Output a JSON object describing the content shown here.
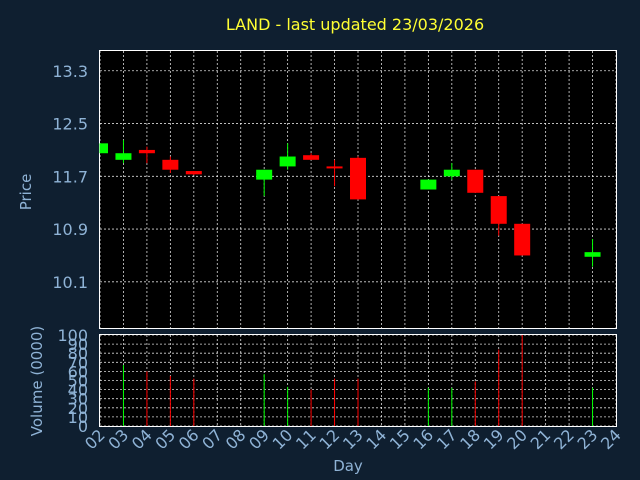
{
  "chart_data": {
    "type": "candlestick",
    "title": "LAND - last updated 23/03/2026",
    "xlabel": "Day",
    "ylabel_price": "Price",
    "ylabel_volume": "Volume (0000)",
    "x_ticks": [
      "02",
      "03",
      "04",
      "05",
      "06",
      "07",
      "08",
      "09",
      "10",
      "11",
      "12",
      "13",
      "14",
      "15",
      "16",
      "17",
      "18",
      "19",
      "20",
      "21",
      "22",
      "23",
      "24"
    ],
    "price_ticks": [
      "10.1",
      "10.9",
      "11.7",
      "12.5",
      "13.3"
    ],
    "price_tick_values": [
      10.1,
      10.9,
      11.7,
      12.5,
      13.3
    ],
    "price_range": [
      9.4,
      13.6
    ],
    "volume_ticks": [
      "0",
      "10",
      "20",
      "30",
      "40",
      "50",
      "60",
      "70",
      "80",
      "90",
      "100"
    ],
    "volume_range": [
      0,
      100
    ],
    "grid": true,
    "colors": {
      "up": "#00ff00",
      "down": "#ff0000",
      "title": "#ffff33",
      "axis_text": "#8fb3d6",
      "background": "#0f1f30",
      "plot": "#000000"
    },
    "candles": [
      {
        "day": "02",
        "open": 12.05,
        "high": 12.2,
        "low": 12.05,
        "close": 12.2,
        "volume": 0
      },
      {
        "day": "03",
        "open": 11.95,
        "high": 12.25,
        "low": 11.9,
        "close": 12.05,
        "volume": 67
      },
      {
        "day": "04",
        "open": 12.1,
        "high": 12.15,
        "low": 11.9,
        "close": 12.05,
        "volume": 60
      },
      {
        "day": "05",
        "open": 11.95,
        "high": 12.0,
        "low": 11.75,
        "close": 11.8,
        "volume": 55
      },
      {
        "day": "06",
        "open": 11.78,
        "high": 11.78,
        "low": 11.72,
        "close": 11.73,
        "volume": 52
      },
      {
        "day": "09",
        "open": 11.65,
        "high": 11.8,
        "low": 11.4,
        "close": 11.8,
        "volume": 57
      },
      {
        "day": "10",
        "open": 11.85,
        "high": 12.2,
        "low": 11.8,
        "close": 12.0,
        "volume": 43
      },
      {
        "day": "11",
        "open": 12.02,
        "high": 12.05,
        "low": 11.95,
        "close": 11.95,
        "volume": 40
      },
      {
        "day": "12",
        "open": 11.85,
        "high": 11.95,
        "low": 11.55,
        "close": 11.83,
        "volume": 52
      },
      {
        "day": "13",
        "open": 11.98,
        "high": 12.0,
        "low": 11.35,
        "close": 11.35,
        "volume": 52
      },
      {
        "day": "16",
        "open": 11.5,
        "high": 11.65,
        "low": 11.5,
        "close": 11.65,
        "volume": 42
      },
      {
        "day": "17",
        "open": 11.7,
        "high": 11.9,
        "low": 11.65,
        "close": 11.8,
        "volume": 42
      },
      {
        "day": "18",
        "open": 11.8,
        "high": 11.8,
        "low": 11.45,
        "close": 11.45,
        "volume": 49
      },
      {
        "day": "19",
        "open": 11.4,
        "high": 11.4,
        "low": 10.8,
        "close": 10.98,
        "volume": 84
      },
      {
        "day": "20",
        "open": 10.98,
        "high": 10.98,
        "low": 10.5,
        "close": 10.5,
        "volume": 100
      },
      {
        "day": "23",
        "open": 10.48,
        "high": 10.75,
        "low": 10.33,
        "close": 10.55,
        "volume": 42
      }
    ]
  }
}
